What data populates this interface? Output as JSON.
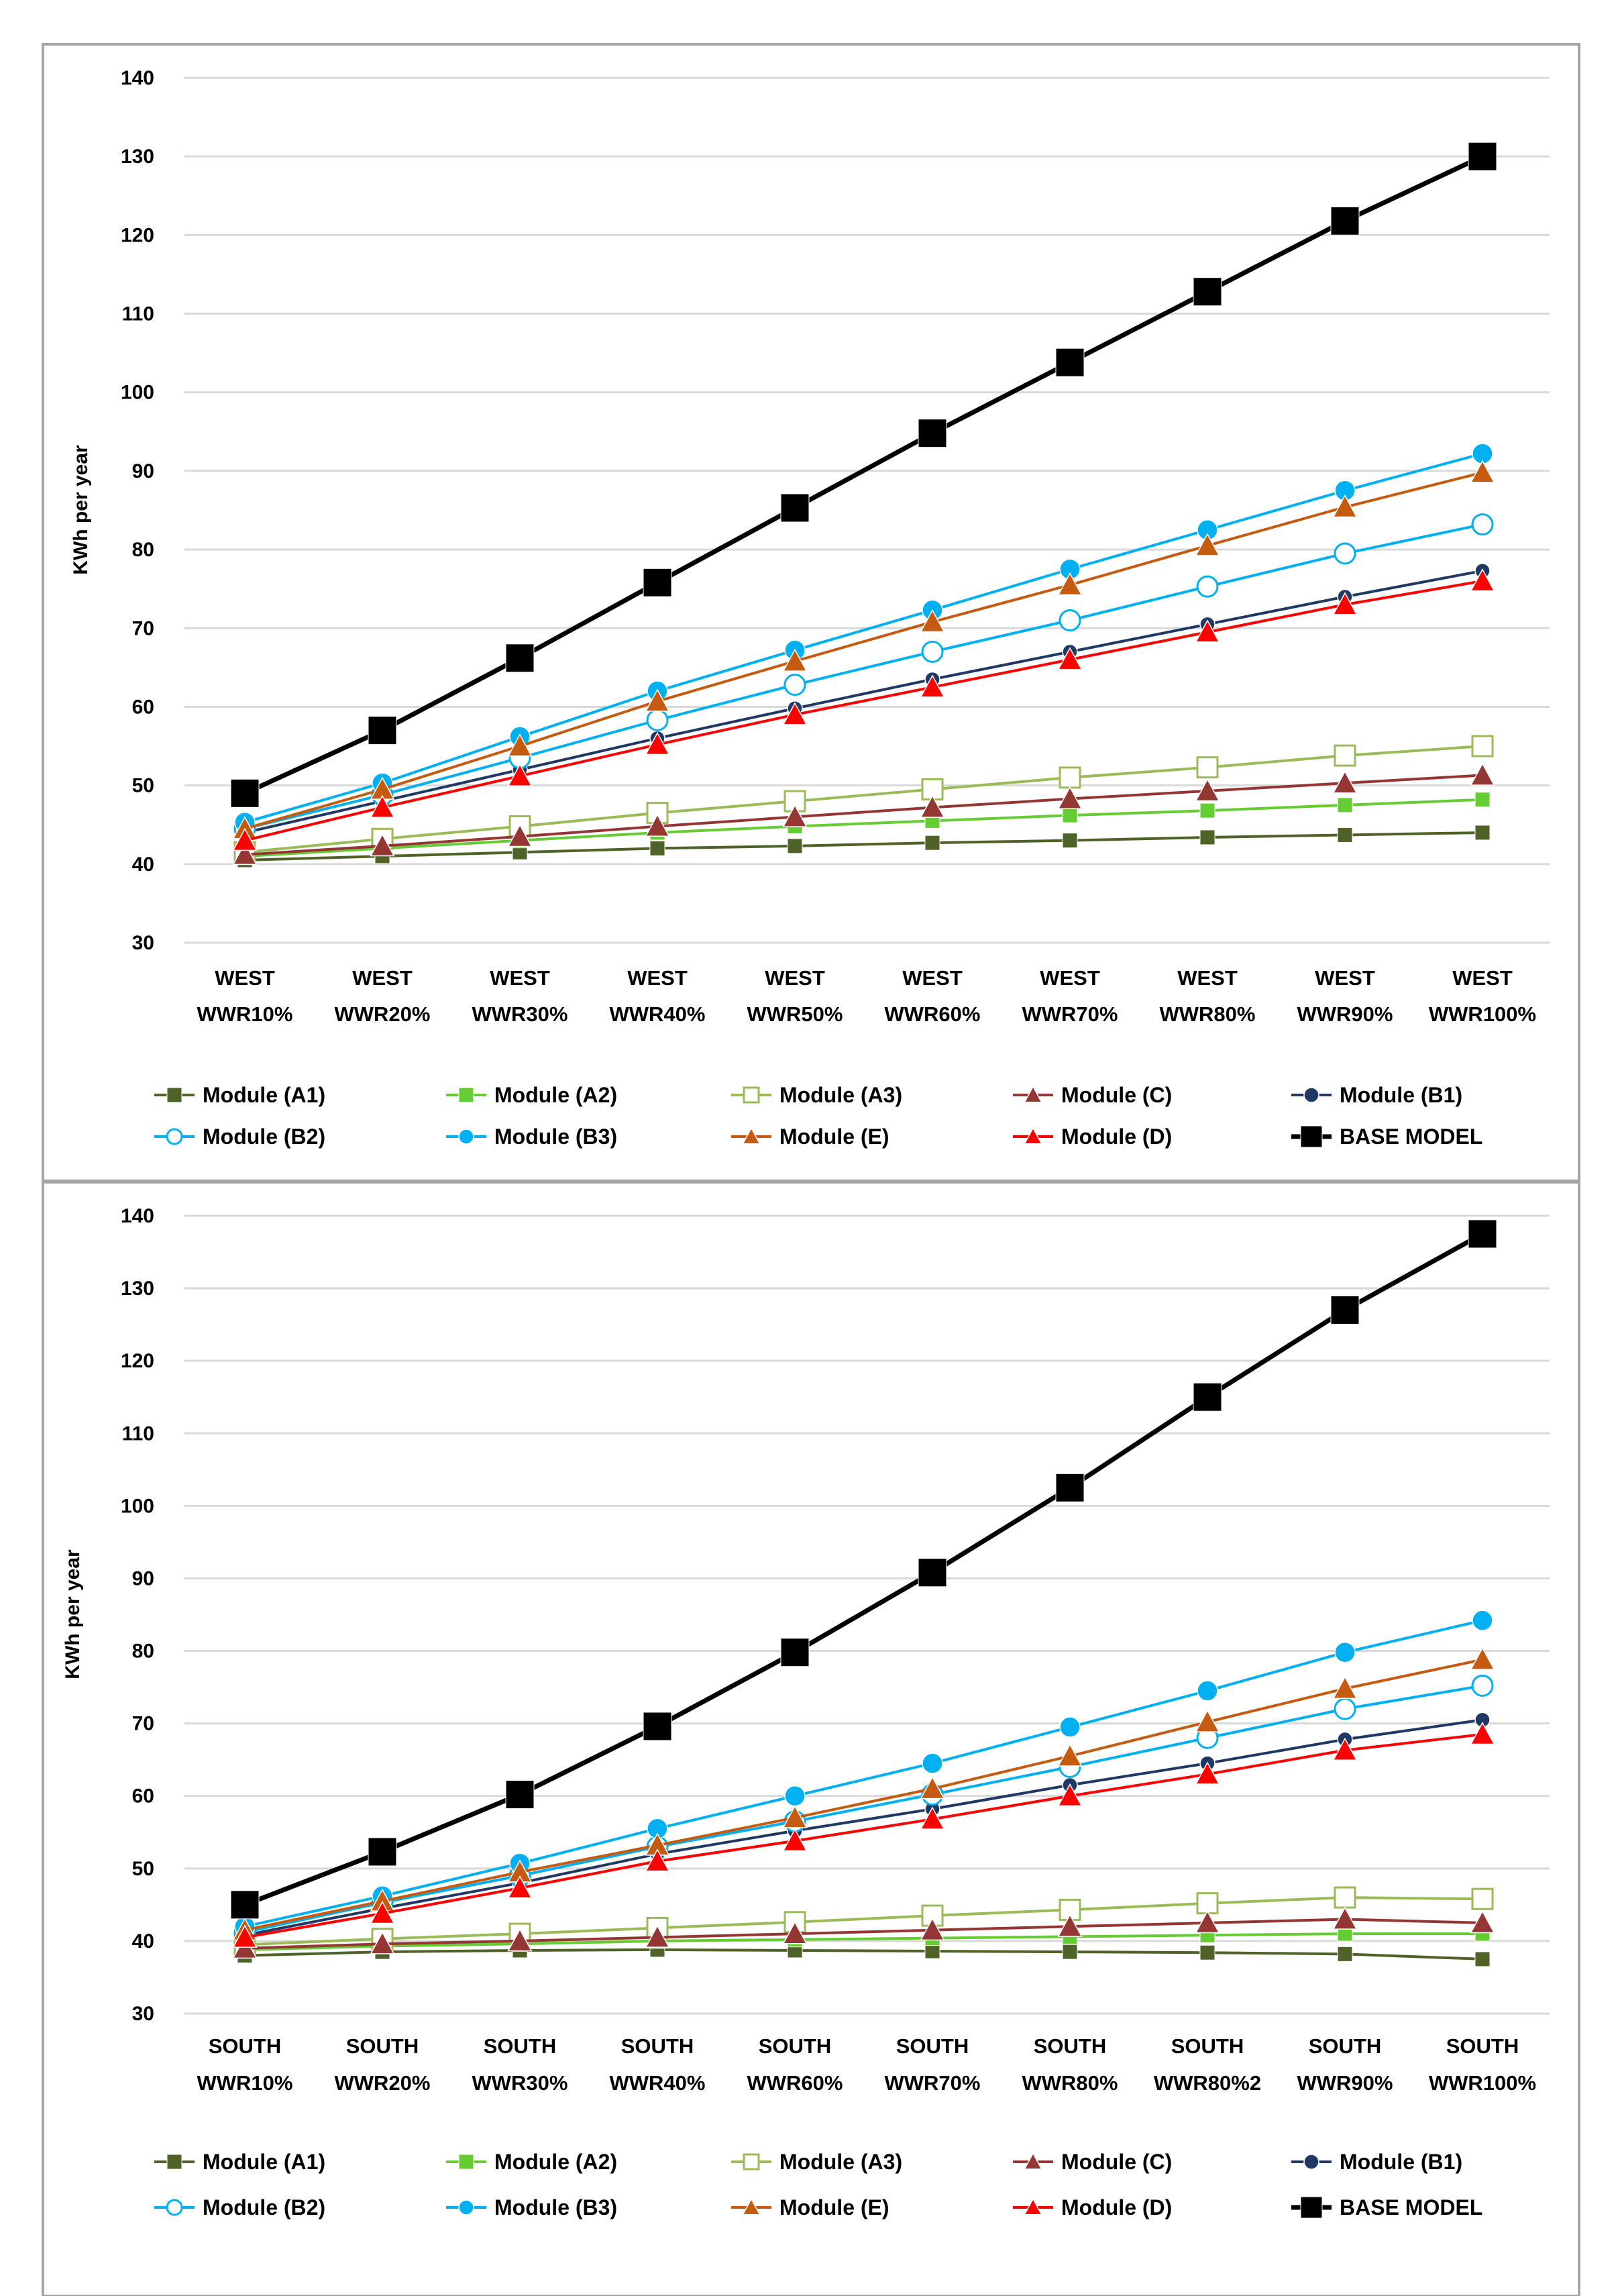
{
  "chart_data": [
    {
      "type": "line",
      "ylabel": "KWh per year",
      "ylim": [
        30,
        140
      ],
      "yticks": [
        30,
        40,
        50,
        60,
        70,
        80,
        90,
        100,
        110,
        120,
        130,
        140
      ],
      "grid": true,
      "legend": "bottom",
      "categories": [
        [
          "WEST",
          "WWR10%"
        ],
        [
          "WEST",
          "WWR20%"
        ],
        [
          "WEST",
          "WWR30%"
        ],
        [
          "WEST",
          "WWR40%"
        ],
        [
          "WEST",
          "WWR50%"
        ],
        [
          "WEST",
          "WWR60%"
        ],
        [
          "WEST",
          "WWR70%"
        ],
        [
          "WEST",
          "WWR80%"
        ],
        [
          "WEST",
          "WWR90%"
        ],
        [
          "WEST",
          "WWR100%"
        ]
      ],
      "series": [
        {
          "name": "Module (A1)",
          "color": "#4f6228",
          "marker": "square",
          "size": "small",
          "values": [
            40.5,
            41,
            41.5,
            42,
            42.3,
            42.7,
            43,
            43.4,
            43.7,
            44
          ]
        },
        {
          "name": "Module (A2)",
          "color": "#66cc33",
          "marker": "square",
          "size": "small",
          "values": [
            41,
            42,
            43,
            44,
            44.8,
            45.5,
            46.2,
            46.8,
            47.5,
            48.2
          ]
        },
        {
          "name": "Module (A3)",
          "color": "#9bbb59",
          "marker": "square-open",
          "size": "medium",
          "values": [
            41.5,
            43.2,
            44.8,
            46.5,
            48,
            49.5,
            51,
            52.3,
            53.8,
            55
          ]
        },
        {
          "name": "Module (C)",
          "color": "#943634",
          "marker": "triangle",
          "size": "medium",
          "values": [
            41.2,
            42.3,
            43.5,
            44.8,
            46,
            47.2,
            48.3,
            49.3,
            50.3,
            51.3
          ]
        },
        {
          "name": "Module (B1)",
          "color": "#1f3864",
          "marker": "circle",
          "size": "small",
          "values": [
            44,
            48,
            52,
            56,
            59.8,
            63.5,
            67,
            70.5,
            74,
            77.3
          ]
        },
        {
          "name": "Module (B2)",
          "color": "#00b0f0",
          "marker": "circle-open",
          "size": "medium",
          "values": [
            44.5,
            48.8,
            53.5,
            58.3,
            62.8,
            67,
            71,
            75.3,
            79.5,
            83.2
          ]
        },
        {
          "name": "Module (B3)",
          "color": "#00b0f0",
          "marker": "circle",
          "size": "medium",
          "values": [
            45.3,
            50.3,
            56.2,
            62,
            67.2,
            72.3,
            77.5,
            82.5,
            87.5,
            92.2
          ]
        },
        {
          "name": "Module (E)",
          "color": "#c55a11",
          "marker": "triangle",
          "size": "medium",
          "values": [
            44.5,
            49.5,
            55,
            60.7,
            65.8,
            70.8,
            75.5,
            80.5,
            85.4,
            89.8
          ]
        },
        {
          "name": "Module (D)",
          "color": "#ff0000",
          "marker": "triangle",
          "size": "medium",
          "values": [
            43,
            47.2,
            51.2,
            55.2,
            59,
            62.5,
            66,
            69.5,
            73,
            76
          ]
        },
        {
          "name": "BASE MODEL",
          "color": "#000000",
          "marker": "square",
          "size": "large",
          "values": [
            49,
            57,
            66.2,
            75.8,
            85.3,
            94.8,
            103.8,
            112.8,
            121.8,
            130
          ]
        }
      ]
    },
    {
      "type": "line",
      "ylabel": "KWh per year",
      "ylim": [
        30,
        140
      ],
      "yticks": [
        30,
        40,
        50,
        60,
        70,
        80,
        90,
        100,
        110,
        120,
        130,
        140
      ],
      "grid": true,
      "legend": "bottom",
      "categories": [
        [
          "SOUTH",
          "WWR10%"
        ],
        [
          "SOUTH",
          "WWR20%"
        ],
        [
          "SOUTH",
          "WWR30%"
        ],
        [
          "SOUTH",
          "WWR40%"
        ],
        [
          "SOUTH",
          "WWR60%"
        ],
        [
          "SOUTH",
          "WWR70%"
        ],
        [
          "SOUTH",
          "WWR80%"
        ],
        [
          "SOUTH",
          "WWR80%2"
        ],
        [
          "SOUTH",
          "WWR90%"
        ],
        [
          "SOUTH",
          "WWR100%"
        ]
      ],
      "series": [
        {
          "name": "Module (A1)",
          "color": "#4f6228",
          "marker": "square",
          "size": "small",
          "values": [
            38,
            38.5,
            38.7,
            38.8,
            38.7,
            38.6,
            38.5,
            38.4,
            38.2,
            37.5
          ]
        },
        {
          "name": "Module (A2)",
          "color": "#66cc33",
          "marker": "square",
          "size": "small",
          "values": [
            38.8,
            39.3,
            39.6,
            40,
            40.2,
            40.4,
            40.6,
            40.8,
            41,
            41
          ]
        },
        {
          "name": "Module (A3)",
          "color": "#9bbb59",
          "marker": "square-open",
          "size": "medium",
          "values": [
            39.5,
            40.3,
            41,
            41.8,
            42.6,
            43.5,
            44.3,
            45.2,
            46,
            45.8
          ]
        },
        {
          "name": "Module (C)",
          "color": "#943634",
          "marker": "triangle",
          "size": "medium",
          "values": [
            39,
            39.6,
            40,
            40.5,
            41,
            41.5,
            42,
            42.5,
            43,
            42.5
          ]
        },
        {
          "name": "Module (B1)",
          "color": "#1f3864",
          "marker": "circle",
          "size": "small",
          "values": [
            40.8,
            44.5,
            48,
            52,
            55.2,
            58.2,
            61.5,
            64.5,
            67.8,
            70.5
          ]
        },
        {
          "name": "Module (B2)",
          "color": "#00b0f0",
          "marker": "circle-open",
          "size": "medium",
          "values": [
            41.2,
            45.3,
            49,
            53,
            56.5,
            60.2,
            64,
            68,
            72,
            75.2
          ]
        },
        {
          "name": "Module (B3)",
          "color": "#00b0f0",
          "marker": "circle",
          "size": "medium",
          "values": [
            42,
            46.2,
            50.7,
            55.5,
            60,
            64.5,
            69.5,
            74.5,
            79.8,
            84.2
          ]
        },
        {
          "name": "Module (E)",
          "color": "#c55a11",
          "marker": "triangle",
          "size": "medium",
          "values": [
            41.5,
            45.5,
            49.5,
            53.2,
            57,
            61,
            65.5,
            70.2,
            74.8,
            78.8
          ]
        },
        {
          "name": "Module (D)",
          "color": "#ff0000",
          "marker": "triangle",
          "size": "medium",
          "values": [
            40.5,
            43.8,
            47.3,
            51,
            53.8,
            56.8,
            60,
            63,
            66.3,
            68.5
          ]
        },
        {
          "name": "BASE MODEL",
          "color": "#000000",
          "marker": "square",
          "size": "large",
          "values": [
            45,
            52.3,
            60.2,
            69.6,
            79.8,
            90.8,
            102.5,
            115,
            127,
            137.5
          ]
        }
      ]
    }
  ]
}
